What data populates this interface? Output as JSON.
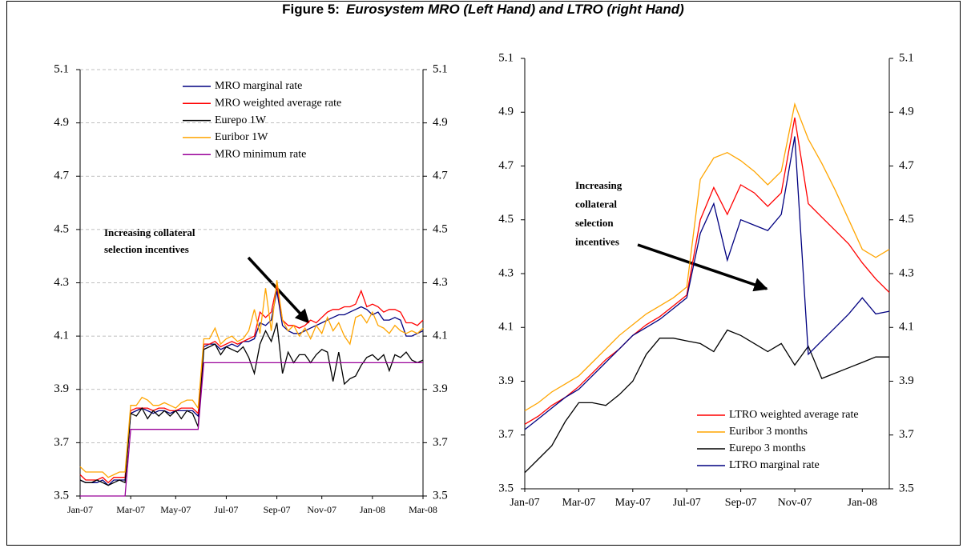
{
  "figure": {
    "label": "Figure 5:",
    "title": "Eurosystem MRO (Left Hand) and LTRO (right Hand)"
  },
  "chart_data": [
    {
      "type": "line",
      "categories": [
        "Jan-07",
        null,
        null,
        null,
        null,
        null,
        null,
        null,
        null,
        "Mar-07",
        null,
        null,
        null,
        null,
        null,
        null,
        null,
        "May-07",
        null,
        null,
        null,
        null,
        null,
        null,
        null,
        null,
        "Jul-07",
        null,
        null,
        null,
        null,
        null,
        null,
        null,
        null,
        "Sep-07",
        null,
        null,
        null,
        null,
        null,
        null,
        null,
        "Nov-07",
        null,
        null,
        null,
        null,
        null,
        null,
        null,
        null,
        "Jan-08",
        null,
        null,
        null,
        null,
        null,
        null,
        null,
        null,
        "Mar-08"
      ],
      "series": [
        {
          "name": "MRO marginal rate",
          "color": "#000080",
          "values": [
            3.56,
            3.55,
            3.55,
            3.55,
            3.56,
            3.54,
            3.56,
            3.56,
            3.56,
            3.81,
            3.82,
            3.83,
            3.82,
            3.81,
            3.82,
            3.82,
            3.81,
            3.82,
            3.82,
            3.82,
            3.82,
            3.8,
            4.06,
            4.07,
            4.07,
            4.05,
            4.06,
            4.07,
            4.06,
            4.08,
            4.08,
            4.09,
            4.15,
            4.14,
            4.16,
            4.27,
            4.14,
            4.12,
            4.11,
            4.11,
            4.12,
            4.13,
            4.14,
            4.15,
            4.16,
            4.17,
            4.18,
            4.18,
            4.19,
            4.2,
            4.21,
            4.2,
            4.18,
            4.19,
            4.16,
            4.16,
            4.17,
            4.16,
            4.1,
            4.1,
            4.11,
            4.12
          ]
        },
        {
          "name": "MRO weighted average rate",
          "color": "#ff0000",
          "values": [
            3.58,
            3.56,
            3.56,
            3.56,
            3.57,
            3.55,
            3.57,
            3.57,
            3.57,
            3.82,
            3.83,
            3.83,
            3.83,
            3.82,
            3.83,
            3.83,
            3.82,
            3.82,
            3.83,
            3.83,
            3.83,
            3.81,
            4.07,
            4.07,
            4.08,
            4.06,
            4.07,
            4.08,
            4.07,
            4.08,
            4.09,
            4.1,
            4.19,
            4.17,
            4.19,
            4.29,
            4.16,
            4.14,
            4.14,
            4.13,
            4.14,
            4.16,
            4.15,
            4.17,
            4.19,
            4.2,
            4.2,
            4.21,
            4.21,
            4.22,
            4.27,
            4.21,
            4.22,
            4.21,
            4.19,
            4.2,
            4.2,
            4.19,
            4.15,
            4.15,
            4.14,
            4.16
          ]
        },
        {
          "name": "Eurepo 1W",
          "color": "#000000",
          "values": [
            3.56,
            3.55,
            3.55,
            3.56,
            3.55,
            3.54,
            3.55,
            3.56,
            3.55,
            3.81,
            3.8,
            3.83,
            3.79,
            3.82,
            3.8,
            3.82,
            3.8,
            3.82,
            3.79,
            3.82,
            3.81,
            3.76,
            4.05,
            4.06,
            4.07,
            4.03,
            4.06,
            4.05,
            4.04,
            4.06,
            4.02,
            3.96,
            4.07,
            4.12,
            4.08,
            4.15,
            3.96,
            4.04,
            4.0,
            4.03,
            4.03,
            4.0,
            4.03,
            4.05,
            4.04,
            3.93,
            4.04,
            3.92,
            3.94,
            3.95,
            3.99,
            4.02,
            4.03,
            4.01,
            4.03,
            3.97,
            4.03,
            4.02,
            4.04,
            4.01,
            4.0,
            4.01
          ]
        },
        {
          "name": "Euribor 1W",
          "color": "#ffa500",
          "values": [
            3.61,
            3.59,
            3.59,
            3.59,
            3.59,
            3.57,
            3.58,
            3.59,
            3.59,
            3.84,
            3.84,
            3.87,
            3.86,
            3.84,
            3.84,
            3.85,
            3.84,
            3.83,
            3.85,
            3.86,
            3.86,
            3.83,
            4.09,
            4.09,
            4.13,
            4.07,
            4.09,
            4.1,
            4.08,
            4.09,
            4.12,
            4.2,
            4.11,
            4.28,
            4.12,
            4.31,
            4.16,
            4.12,
            4.14,
            4.1,
            4.13,
            4.09,
            4.14,
            4.11,
            4.17,
            4.12,
            4.15,
            4.1,
            4.07,
            4.17,
            4.18,
            4.15,
            4.19,
            4.14,
            4.13,
            4.11,
            4.14,
            4.12,
            4.11,
            4.12,
            4.11,
            4.13
          ]
        },
        {
          "name": "MRO minimum rate",
          "color": "#990099",
          "values": [
            3.5,
            3.5,
            3.5,
            3.5,
            3.5,
            3.5,
            3.5,
            3.5,
            3.5,
            3.75,
            3.75,
            3.75,
            3.75,
            3.75,
            3.75,
            3.75,
            3.75,
            3.75,
            3.75,
            3.75,
            3.75,
            3.75,
            4.0,
            4.0,
            4.0,
            4.0,
            4.0,
            4.0,
            4.0,
            4.0,
            4.0,
            4.0,
            4.0,
            4.0,
            4.0,
            4.0,
            4.0,
            4.0,
            4.0,
            4.0,
            4.0,
            4.0,
            4.0,
            4.0,
            4.0,
            4.0,
            4.0,
            4.0,
            4.0,
            4.0,
            4.0,
            4.0,
            4.0,
            4.0,
            4.0,
            4.0,
            4.0,
            4.0,
            4.0,
            4.0,
            4.0,
            4.0
          ]
        }
      ],
      "ylim": [
        3.5,
        5.1
      ],
      "yticks": [
        3.5,
        3.7,
        3.9,
        4.1,
        4.3,
        4.5,
        4.7,
        4.9,
        5.1
      ],
      "mirror_y_axis": true,
      "grid": true,
      "legend": "upper right",
      "annotation": [
        "Increasing collateral",
        "selection incentives"
      ]
    },
    {
      "type": "line",
      "categories": [
        "Jan-07",
        null,
        null,
        null,
        "Mar-07",
        null,
        null,
        null,
        "May-07",
        null,
        null,
        null,
        "Jul-07",
        null,
        null,
        null,
        "Sep-07",
        null,
        null,
        null,
        "Nov-07",
        null,
        null,
        null,
        null,
        "Jan-08",
        null,
        null
      ],
      "series": [
        {
          "name": "LTRO weighted average rate",
          "color": "#ff0000",
          "values": [
            3.74,
            3.77,
            3.81,
            3.84,
            3.88,
            3.93,
            3.98,
            4.02,
            4.07,
            4.11,
            4.14,
            4.18,
            4.22,
            4.5,
            4.62,
            4.52,
            4.63,
            4.6,
            4.55,
            4.6,
            4.88,
            4.56,
            4.51,
            4.46,
            4.41,
            4.34,
            4.28,
            4.23
          ]
        },
        {
          "name": "Euribor 3  months",
          "color": "#ffa500",
          "values": [
            3.79,
            3.82,
            3.86,
            3.89,
            3.92,
            3.97,
            4.02,
            4.07,
            4.11,
            4.15,
            4.18,
            4.21,
            4.25,
            4.65,
            4.73,
            4.75,
            4.72,
            4.68,
            4.63,
            4.68,
            4.93,
            4.8,
            4.71,
            4.61,
            4.5,
            4.39,
            4.36,
            4.39
          ]
        },
        {
          "name": "Eurepo 3 months",
          "color": "#000000",
          "values": [
            3.56,
            3.61,
            3.66,
            3.75,
            3.82,
            3.82,
            3.81,
            3.85,
            3.9,
            4.0,
            4.06,
            4.06,
            4.05,
            4.04,
            4.01,
            4.09,
            4.07,
            4.04,
            4.01,
            4.04,
            3.96,
            4.03,
            3.91,
            3.93,
            3.95,
            3.97,
            3.99,
            3.99
          ]
        },
        {
          "name": "LTRO marginal rate",
          "color": "#000080",
          "values": [
            3.72,
            3.76,
            3.8,
            3.84,
            3.87,
            3.92,
            3.97,
            4.02,
            4.07,
            4.1,
            4.13,
            4.17,
            4.21,
            4.45,
            4.56,
            4.35,
            4.5,
            4.48,
            4.46,
            4.52,
            4.81,
            4.0,
            4.05,
            4.1,
            4.15,
            4.21,
            4.15,
            4.16
          ]
        }
      ],
      "ylim": [
        3.5,
        5.1
      ],
      "yticks": [
        3.5,
        3.7,
        3.9,
        4.1,
        4.3,
        4.5,
        4.7,
        4.9,
        5.1
      ],
      "mirror_y_axis": true,
      "grid": false,
      "legend": "lower right",
      "annotation": [
        "Increasing",
        "collateral",
        "selection",
        "incentives"
      ]
    }
  ]
}
